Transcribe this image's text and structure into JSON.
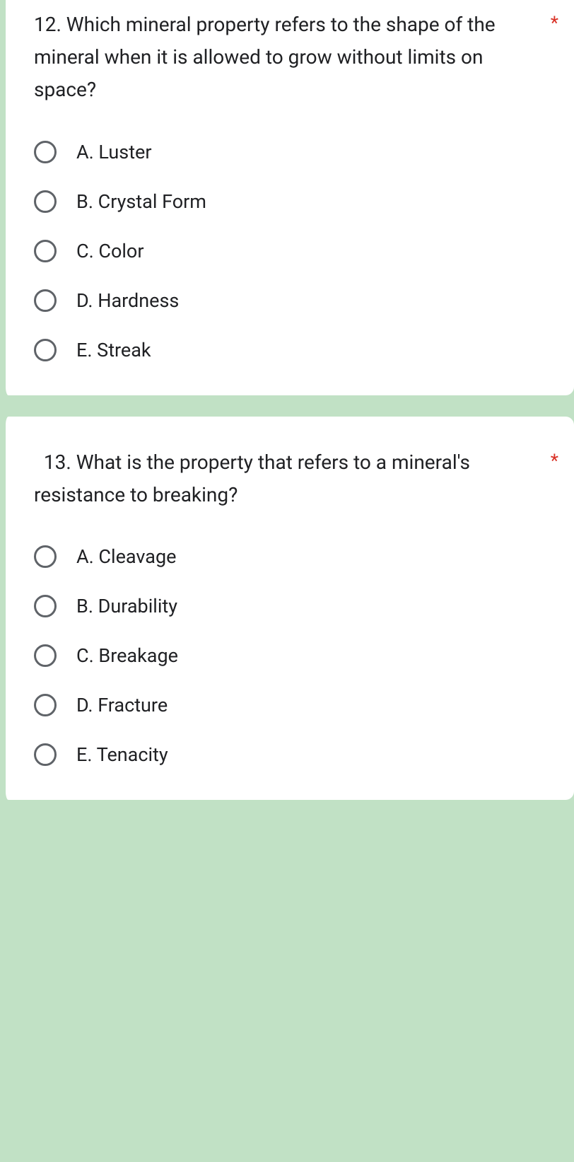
{
  "colors": {
    "page_bg": "#c1e1c5",
    "card_bg": "#ffffff",
    "text": "#202124",
    "radio_border": "#5f6368",
    "required": "#d93025"
  },
  "questions": [
    {
      "text": "12. Which mineral property refers to the shape of the mineral when it is allowed to grow without limits on space?",
      "required_marker": "*",
      "options": [
        "A. Luster",
        "B. Crystal Form",
        "C. Color",
        "D. Hardness",
        "E. Streak"
      ]
    },
    {
      "text": "  13. What is the property that refers to a mineral's resistance to breaking?",
      "required_marker": "*",
      "options": [
        "A. Cleavage",
        "B. Durability",
        "C. Breakage",
        "D. Fracture",
        "E. Tenacity"
      ]
    }
  ]
}
